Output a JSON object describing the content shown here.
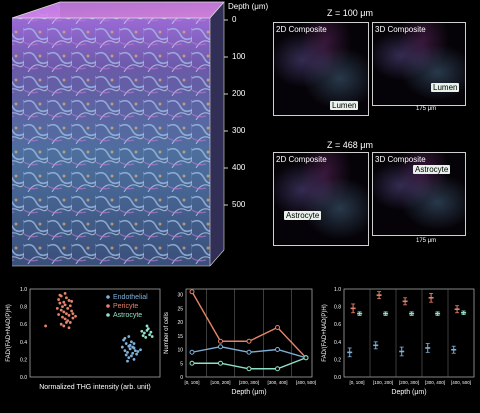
{
  "cube": {
    "depth_axis_label": "Depth (μm)",
    "depth_ticks": [
      "0",
      "100",
      "200",
      "300",
      "400",
      "500"
    ]
  },
  "panels_z100": {
    "title": "Z = 100 μm",
    "left_label": "2D Composite",
    "right_label": "3D Composite",
    "left_callout": "Lumen",
    "right_callout": "Lumen",
    "scale": "175 μm"
  },
  "panels_z468": {
    "title": "Z = 468 μm",
    "left_label": "2D Composite",
    "right_label": "3D Composite",
    "left_callout": "Astrocyte",
    "right_callout": "Astrocyte",
    "scale": "175 μm"
  },
  "colors": {
    "endothelial": "#7fb0d8",
    "pericyte": "#e4836a",
    "astrocyte": "#8fe0c8"
  },
  "chart_data": [
    {
      "type": "scatter",
      "xlabel": "Normalized THG intensity (arb. unit)",
      "ylabel": "FAD/(FAD+NAD(P)H)",
      "yticks": [
        "1.0",
        "0.8",
        "0.6",
        "0.4",
        "0.2",
        "0.0"
      ],
      "legend": [
        "Endothelial",
        "Pericyte",
        "Astrocyte"
      ],
      "legend_position": "top-right",
      "xlim": [
        0,
        1
      ],
      "ylim": [
        0,
        1
      ],
      "series": [
        {
          "name": "Pericyte",
          "color": "#e4836a",
          "points": [
            [
              0.22,
              0.88
            ],
            [
              0.24,
              0.92
            ],
            [
              0.26,
              0.85
            ],
            [
              0.28,
              0.9
            ],
            [
              0.3,
              0.87
            ],
            [
              0.25,
              0.8
            ],
            [
              0.27,
              0.82
            ],
            [
              0.23,
              0.84
            ],
            [
              0.29,
              0.78
            ],
            [
              0.31,
              0.81
            ],
            [
              0.24,
              0.76
            ],
            [
              0.26,
              0.74
            ],
            [
              0.28,
              0.72
            ],
            [
              0.3,
              0.7
            ],
            [
              0.32,
              0.75
            ],
            [
              0.25,
              0.68
            ],
            [
              0.27,
              0.66
            ],
            [
              0.29,
              0.64
            ],
            [
              0.31,
              0.62
            ],
            [
              0.33,
              0.67
            ],
            [
              0.22,
              0.71
            ],
            [
              0.24,
              0.6
            ],
            [
              0.26,
              0.58
            ],
            [
              0.28,
              0.62
            ],
            [
              0.3,
              0.56
            ],
            [
              0.33,
              0.72
            ],
            [
              0.21,
              0.78
            ],
            [
              0.35,
              0.69
            ],
            [
              0.12,
              0.58
            ],
            [
              0.23,
              0.93
            ],
            [
              0.32,
              0.86
            ],
            [
              0.27,
              0.95
            ]
          ]
        },
        {
          "name": "Endothelial",
          "color": "#7fb0d8",
          "points": [
            [
              0.72,
              0.42
            ],
            [
              0.74,
              0.38
            ],
            [
              0.76,
              0.35
            ],
            [
              0.78,
              0.4
            ],
            [
              0.8,
              0.33
            ],
            [
              0.73,
              0.3
            ],
            [
              0.75,
              0.28
            ],
            [
              0.77,
              0.32
            ],
            [
              0.79,
              0.27
            ],
            [
              0.81,
              0.3
            ],
            [
              0.74,
              0.25
            ],
            [
              0.76,
              0.22
            ],
            [
              0.78,
              0.24
            ],
            [
              0.8,
              0.2
            ],
            [
              0.82,
              0.26
            ],
            [
              0.75,
              0.18
            ],
            [
              0.77,
              0.36
            ],
            [
              0.79,
              0.34
            ],
            [
              0.83,
              0.29
            ],
            [
              0.71,
              0.34
            ],
            [
              0.73,
              0.44
            ],
            [
              0.85,
              0.31
            ],
            [
              0.76,
              0.46
            ],
            [
              0.8,
              0.38
            ]
          ]
        },
        {
          "name": "Astrocyte",
          "color": "#8fe0c8",
          "points": [
            [
              0.88,
              0.5
            ],
            [
              0.9,
              0.53
            ],
            [
              0.92,
              0.48
            ],
            [
              0.89,
              0.45
            ],
            [
              0.91,
              0.55
            ],
            [
              0.93,
              0.51
            ],
            [
              0.87,
              0.47
            ],
            [
              0.9,
              0.58
            ],
            [
              0.94,
              0.46
            ],
            [
              0.86,
              0.52
            ]
          ]
        }
      ]
    },
    {
      "type": "line",
      "xlabel": "Depth (μm)",
      "ylabel": "Number of cells",
      "categories": [
        "[0, 100]",
        "[100, 200]",
        "[200, 300]",
        "[300, 400]",
        "[400, 500]"
      ],
      "yticks": [
        "0",
        "5",
        "10",
        "15",
        "20",
        "25",
        "30"
      ],
      "ylim": [
        0,
        32
      ],
      "series": [
        {
          "name": "Pericyte",
          "color": "#e4836a",
          "values": [
            31,
            13,
            13,
            18,
            7
          ]
        },
        {
          "name": "Endothelial",
          "color": "#7fb0d8",
          "values": [
            9,
            11,
            9,
            10,
            7
          ]
        },
        {
          "name": "Astrocyte",
          "color": "#8fe0c8",
          "values": [
            5,
            5,
            3,
            3,
            7
          ]
        }
      ]
    },
    {
      "type": "scatter",
      "xlabel": "Depth (μm)",
      "ylabel": "FAD/(FAD+NAD(P)H)",
      "categories": [
        "[0, 100]",
        "[100, 200]",
        "[200, 300]",
        "[300, 400]",
        "[400, 500]"
      ],
      "yticks": [
        "1.0",
        "0.8",
        "0.6",
        "0.4",
        "0.2",
        "0.0"
      ],
      "ylim": [
        0,
        1
      ],
      "series": [
        {
          "name": "Pericyte",
          "color": "#e4836a",
          "values": [
            0.78,
            0.93,
            0.86,
            0.9,
            0.77
          ],
          "err": [
            0.05,
            0.04,
            0.04,
            0.05,
            0.04
          ]
        },
        {
          "name": "Astrocyte",
          "color": "#8fe0c8",
          "values": [
            0.72,
            0.72,
            0.72,
            0.72,
            0.73
          ],
          "err": [
            0.02,
            0.02,
            0.02,
            0.02,
            0.02
          ]
        },
        {
          "name": "Endothelial",
          "color": "#7fb0d8",
          "values": [
            0.28,
            0.36,
            0.29,
            0.33,
            0.31
          ],
          "err": [
            0.05,
            0.04,
            0.05,
            0.05,
            0.04
          ]
        }
      ]
    }
  ]
}
